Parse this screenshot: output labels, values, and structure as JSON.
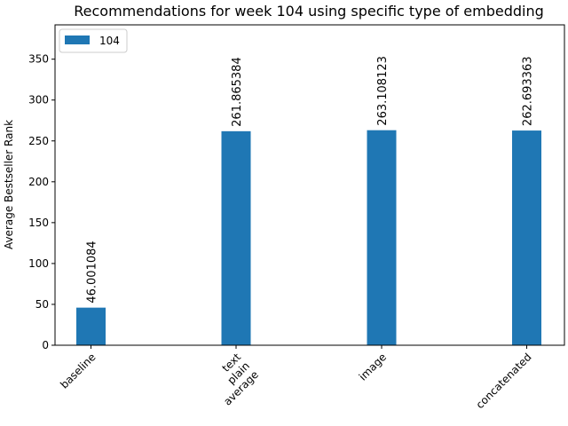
{
  "chart_data": {
    "type": "bar",
    "title": "Recommendations for week 104 using specific type of embedding",
    "xlabel": "",
    "ylabel": "Average Bestseller Rank",
    "categories": [
      [
        "baseline"
      ],
      [
        "text",
        "plain",
        "average"
      ],
      [
        "image"
      ],
      [
        "concatenated"
      ]
    ],
    "series": [
      {
        "name": "104",
        "values": [
          46.001084,
          261.865384,
          263.108123,
          262.693363
        ],
        "value_labels": [
          "46.001084",
          "261.865384",
          "263.108123",
          "262.693363"
        ],
        "color": "#1f77b4"
      }
    ],
    "ylim": [
      0,
      392
    ],
    "yticks": [
      0,
      50,
      100,
      150,
      200,
      250,
      300,
      350
    ],
    "grid": false,
    "legend_position": "top-left"
  }
}
